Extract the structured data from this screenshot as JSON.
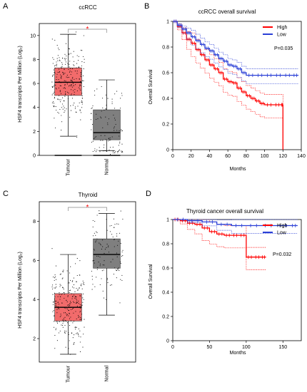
{
  "colors": {
    "tumour_box": "#f26b6b",
    "normal_box": "#7f7f7f",
    "high": "#ff0000",
    "low": "#2a3fd6",
    "star": "#ff0000"
  },
  "chart_data": [
    {
      "panel": "A",
      "type": "box",
      "title": "ccRCC",
      "ylabel": "HSF4 transcripts Per Million (Log₂)",
      "ylim": [
        0,
        11
      ],
      "yticks": [
        0,
        2,
        4,
        6,
        8,
        10
      ],
      "categories": [
        "Tumour",
        "Normal"
      ],
      "significance": "*",
      "series": [
        {
          "name": "Tumour",
          "q1": 5.0,
          "median": 6.1,
          "q3": 7.3,
          "whisker_low": 1.6,
          "whisker_high": 10.1,
          "floor": 0.0
        },
        {
          "name": "Normal",
          "q1": 1.3,
          "median": 1.9,
          "q3": 3.8,
          "whisker_low": 0.4,
          "whisker_high": 6.3,
          "floor": 0.0
        }
      ]
    },
    {
      "panel": "B",
      "type": "line",
      "title": "ccRCC overall survival",
      "xlabel": "Months",
      "ylabel": "Overall Survival",
      "xlim": [
        0,
        140
      ],
      "ylim": [
        0,
        1.0
      ],
      "xticks": [
        0,
        20,
        40,
        60,
        80,
        100,
        120,
        140
      ],
      "yticks": [
        0,
        0.2,
        0.4,
        0.6,
        0.8,
        1.0
      ],
      "pvalue": "P=0.035",
      "series": [
        {
          "name": "High",
          "x": [
            0,
            5,
            10,
            15,
            20,
            25,
            30,
            35,
            40,
            45,
            50,
            55,
            60,
            65,
            70,
            75,
            80,
            85,
            90,
            95,
            100,
            110,
            118,
            120
          ],
          "y": [
            1.0,
            0.96,
            0.91,
            0.86,
            0.83,
            0.78,
            0.74,
            0.7,
            0.66,
            0.63,
            0.6,
            0.55,
            0.53,
            0.52,
            0.48,
            0.45,
            0.42,
            0.4,
            0.38,
            0.36,
            0.35,
            0.35,
            0.35,
            0.0
          ]
        },
        {
          "name": "Low",
          "x": [
            0,
            5,
            10,
            15,
            20,
            25,
            30,
            35,
            40,
            45,
            50,
            55,
            60,
            65,
            70,
            75,
            80,
            90,
            100,
            110,
            120,
            130,
            137
          ],
          "y": [
            1.0,
            0.97,
            0.94,
            0.91,
            0.88,
            0.85,
            0.82,
            0.79,
            0.77,
            0.74,
            0.71,
            0.69,
            0.66,
            0.65,
            0.63,
            0.6,
            0.58,
            0.58,
            0.58,
            0.58,
            0.58,
            0.58,
            0.58
          ]
        }
      ]
    },
    {
      "panel": "C",
      "type": "box",
      "title": "Thyroid",
      "ylabel": "HSF4 transcripts Per Million (Log₂)",
      "ylim": [
        0.8,
        9.0
      ],
      "yticks": [
        2,
        4,
        6,
        8
      ],
      "categories": [
        "Tumour",
        "Normal"
      ],
      "significance": "*",
      "series": [
        {
          "name": "Tumour",
          "q1": 2.9,
          "median": 3.6,
          "q3": 4.3,
          "whisker_low": 1.2,
          "whisker_high": 6.3
        },
        {
          "name": "Normal",
          "q1": 5.6,
          "median": 6.3,
          "q3": 7.1,
          "whisker_low": 3.2,
          "whisker_high": 8.4
        }
      ]
    },
    {
      "panel": "D",
      "type": "line",
      "title": "Thyroid cancer overall survival",
      "xlabel": "Months",
      "ylabel": "Overall Survival",
      "xlim": [
        0,
        175
      ],
      "ylim": [
        0,
        1.0
      ],
      "xticks": [
        0,
        50,
        100,
        150
      ],
      "yticks": [
        0,
        0.2,
        0.4,
        0.6,
        0.8,
        1.0
      ],
      "pvalue": "P=0.032",
      "series": [
        {
          "name": "High",
          "x": [
            0,
            10,
            20,
            30,
            40,
            50,
            60,
            70,
            80,
            90,
            100,
            110,
            120,
            127
          ],
          "y": [
            1.0,
            0.99,
            0.97,
            0.96,
            0.93,
            0.9,
            0.88,
            0.87,
            0.87,
            0.87,
            0.69,
            0.69,
            0.69,
            0.69
          ]
        },
        {
          "name": "Low",
          "x": [
            0,
            20,
            40,
            60,
            80,
            100,
            120,
            140,
            160,
            170
          ],
          "y": [
            1.0,
            0.99,
            0.98,
            0.96,
            0.95,
            0.95,
            0.95,
            0.95,
            0.95,
            0.95
          ]
        }
      ]
    }
  ]
}
